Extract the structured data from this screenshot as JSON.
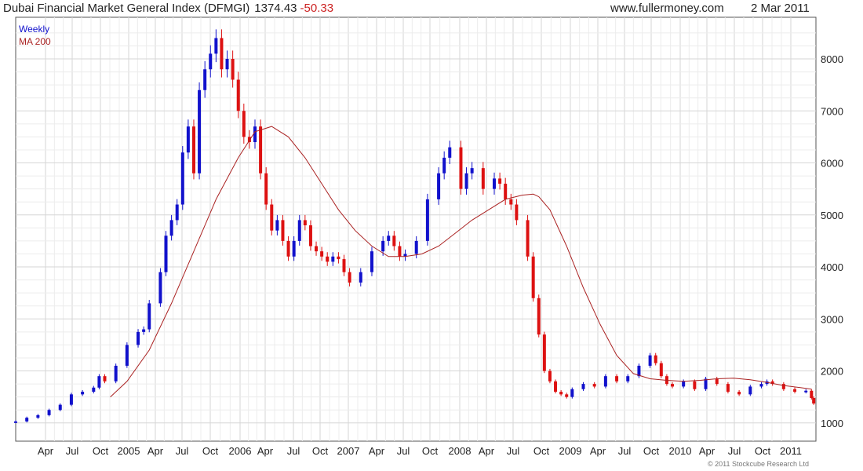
{
  "header": {
    "title": "Dubai Financial Market  General Index (DFMGI)",
    "last_value": "1374.43",
    "change": "-50.33",
    "site": "www.fullermoney.com",
    "date": "2 Mar 2011"
  },
  "legend": {
    "series1": "Weekly",
    "series2": "MA 200"
  },
  "copyright": "© 2011 Stockcube Research Ltd",
  "colors": {
    "up": "#1111cc",
    "down": "#dd1111",
    "ma": "#aa2222",
    "grid": "#d6d6d6"
  },
  "chart_data": {
    "type": "line",
    "x_tick_labels": [
      "Apr",
      "Jul",
      "Oct",
      "2005",
      "Apr",
      "Jul",
      "Oct",
      "2006",
      "Apr",
      "Jul",
      "Oct",
      "2007",
      "Apr",
      "Jul",
      "Oct",
      "2008",
      "Apr",
      "Jul",
      "Oct",
      "2009",
      "Apr",
      "Jul",
      "Oct",
      "2010",
      "Apr",
      "Jul",
      "Oct",
      "2011"
    ],
    "y_tick_labels": [
      "1000",
      "2000",
      "3000",
      "4000",
      "5000",
      "6000",
      "7000",
      "8000"
    ],
    "y_ticks": [
      1000,
      2000,
      3000,
      4000,
      5000,
      6000,
      7000,
      8000
    ],
    "ylim": [
      650,
      8800
    ],
    "xlim": [
      2004.0,
      2011.19
    ],
    "grid": true,
    "legend_position": "top-left",
    "series": [
      {
        "name": "Weekly",
        "style": "candles",
        "x": [
          2004.0,
          2004.1,
          2004.2,
          2004.3,
          2004.4,
          2004.5,
          2004.6,
          2004.7,
          2004.75,
          2004.8,
          2004.9,
          2005.0,
          2005.1,
          2005.15,
          2005.2,
          2005.3,
          2005.35,
          2005.4,
          2005.45,
          2005.5,
          2005.55,
          2005.6,
          2005.65,
          2005.7,
          2005.75,
          2005.8,
          2005.85,
          2005.9,
          2005.95,
          2006.0,
          2006.05,
          2006.1,
          2006.15,
          2006.2,
          2006.25,
          2006.3,
          2006.35,
          2006.4,
          2006.45,
          2006.5,
          2006.55,
          2006.6,
          2006.65,
          2006.7,
          2006.75,
          2006.8,
          2006.85,
          2006.9,
          2006.95,
          2007.0,
          2007.1,
          2007.2,
          2007.3,
          2007.35,
          2007.4,
          2007.45,
          2007.5,
          2007.6,
          2007.7,
          2007.8,
          2007.85,
          2007.9,
          2008.0,
          2008.05,
          2008.1,
          2008.2,
          2008.3,
          2008.35,
          2008.4,
          2008.45,
          2008.5,
          2008.6,
          2008.65,
          2008.7,
          2008.75,
          2008.8,
          2008.85,
          2008.9,
          2008.95,
          2009.0,
          2009.1,
          2009.2,
          2009.3,
          2009.4,
          2009.5,
          2009.6,
          2009.7,
          2009.75,
          2009.8,
          2009.85,
          2009.9,
          2010.0,
          2010.1,
          2010.2,
          2010.3,
          2010.4,
          2010.5,
          2010.6,
          2010.7,
          2010.75,
          2010.8,
          2010.9,
          2011.0,
          2011.1,
          2011.15,
          2011.17
        ],
        "values": [
          1030,
          1100,
          1150,
          1250,
          1350,
          1550,
          1600,
          1680,
          1900,
          1800,
          2100,
          2500,
          2750,
          2800,
          3300,
          3900,
          4600,
          4900,
          5200,
          6200,
          6700,
          5800,
          7400,
          7800,
          8100,
          8400,
          7800,
          8000,
          7600,
          7000,
          6500,
          6400,
          6700,
          5800,
          5200,
          4700,
          4900,
          4500,
          4200,
          4500,
          4900,
          4800,
          4400,
          4300,
          4200,
          4100,
          4200,
          4150,
          3900,
          3700,
          3900,
          4300,
          4500,
          4600,
          4400,
          4200,
          4250,
          4500,
          5300,
          5800,
          6100,
          6300,
          5500,
          5800,
          5900,
          5500,
          5700,
          5600,
          5300,
          5200,
          4900,
          4200,
          3400,
          2700,
          2000,
          1800,
          1600,
          1550,
          1500,
          1650,
          1750,
          1700,
          1900,
          1800,
          1900,
          2100,
          2300,
          2150,
          1900,
          1750,
          1700,
          1800,
          1650,
          1850,
          1750,
          1600,
          1550,
          1700,
          1750,
          1800,
          1750,
          1650,
          1600,
          1620,
          1480,
          1374
        ],
        "unit": "index points"
      },
      {
        "name": "MA 200",
        "style": "line",
        "x": [
          2004.85,
          2005.0,
          2005.2,
          2005.4,
          2005.6,
          2005.8,
          2006.0,
          2006.15,
          2006.3,
          2006.45,
          2006.6,
          2006.75,
          2006.9,
          2007.05,
          2007.2,
          2007.35,
          2007.5,
          2007.65,
          2007.8,
          2007.95,
          2008.1,
          2008.25,
          2008.4,
          2008.55,
          2008.65,
          2008.7,
          2008.8,
          2008.95,
          2009.1,
          2009.25,
          2009.4,
          2009.55,
          2009.7,
          2009.85,
          2010.0,
          2010.15,
          2010.3,
          2010.45,
          2010.6,
          2010.75,
          2010.9,
          2011.05,
          2011.15
        ],
        "values": [
          1500,
          1800,
          2400,
          3300,
          4300,
          5300,
          6100,
          6600,
          6700,
          6500,
          6100,
          5600,
          5100,
          4700,
          4400,
          4200,
          4200,
          4250,
          4400,
          4650,
          4900,
          5100,
          5300,
          5380,
          5400,
          5350,
          5100,
          4400,
          3600,
          2900,
          2300,
          1950,
          1850,
          1820,
          1800,
          1820,
          1850,
          1860,
          1830,
          1780,
          1720,
          1680,
          1650
        ]
      }
    ]
  }
}
